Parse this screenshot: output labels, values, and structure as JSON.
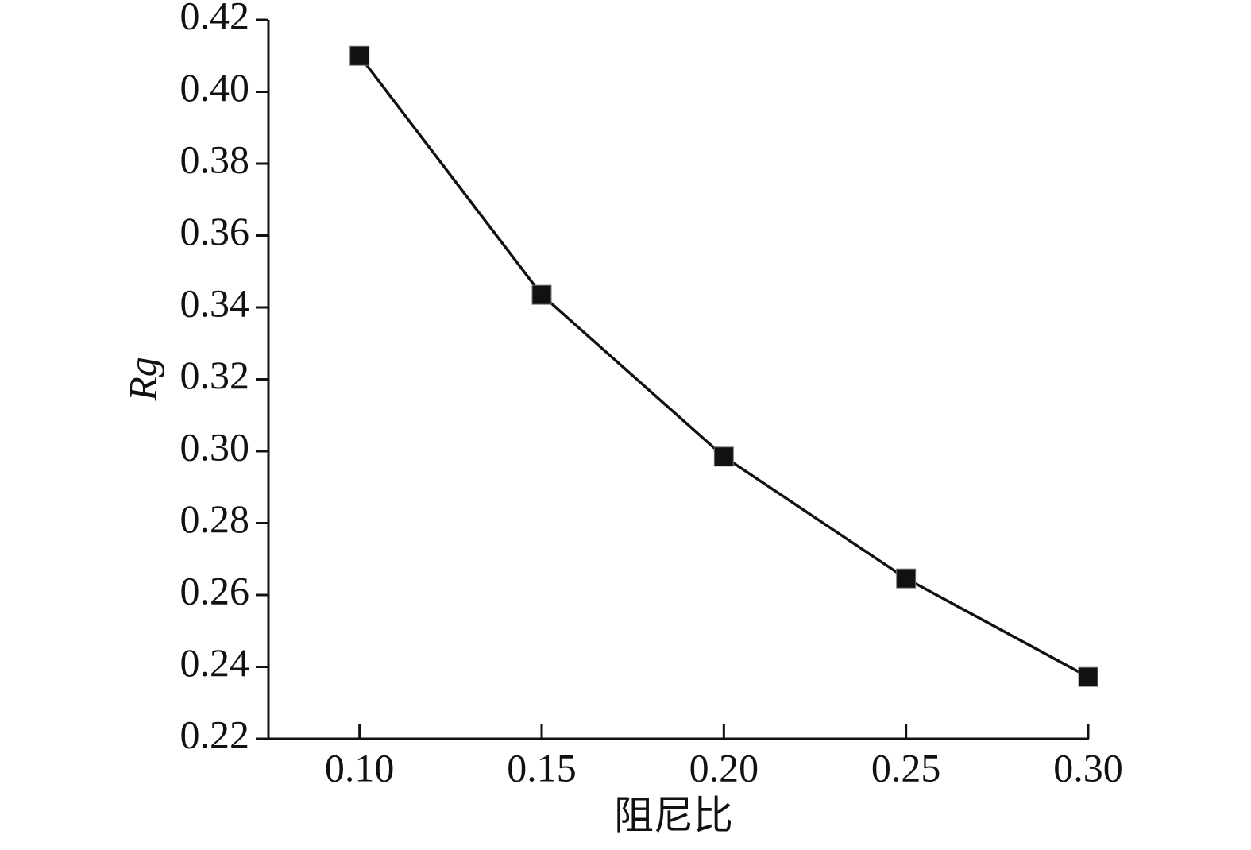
{
  "chart_data": {
    "type": "line",
    "x_label": "阻尼比",
    "y_label": "Rg",
    "x": [
      0.1,
      0.15,
      0.2,
      0.25,
      0.3
    ],
    "series": [
      {
        "color": "#111111",
        "values": [
          0.41,
          0.3435,
          0.2985,
          0.2646,
          0.2372
        ]
      }
    ],
    "xlim": [
      0.075,
      0.3
    ],
    "xticks": [
      {
        "value": 0.1,
        "label": "0.10"
      },
      0.15,
      {
        "value": 0.2,
        "label": "0.20"
      },
      0.25,
      {
        "value": 0.3,
        "label": "0.30"
      }
    ],
    "ylim": [
      0.22,
      0.42
    ],
    "yticks": [
      0.22,
      0.24,
      0.26,
      0.28,
      {
        "value": 0.3,
        "label": "0.30"
      },
      0.32,
      0.34,
      0.36,
      0.38,
      {
        "value": 0.4,
        "label": "0.40"
      },
      0.42
    ],
    "grid": false
  }
}
